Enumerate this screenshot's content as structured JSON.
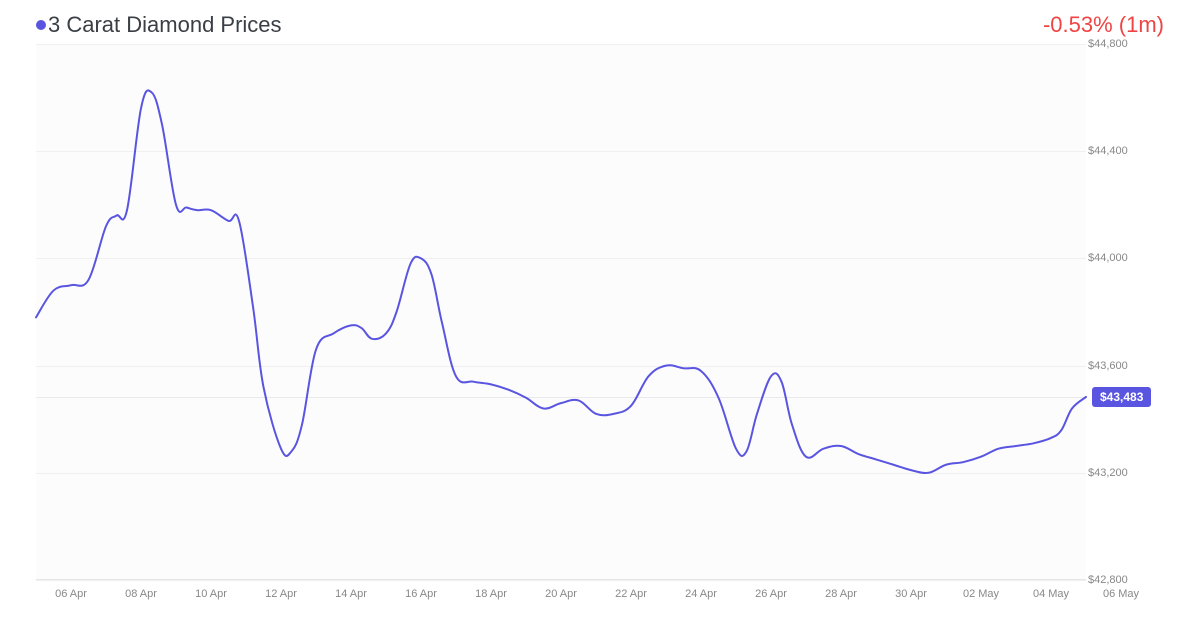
{
  "title": "3 Carat Diamond Prices",
  "change_text": "-0.53% (1m)",
  "change_color": "#ef4444",
  "line_color": "#5a55e0",
  "line_width": 2,
  "badge_bg": "#5a55e0",
  "badge_text": "$43,483",
  "badge_value": 43483,
  "plot": {
    "bg": "#fcfcfd",
    "grid_color": "#f0f0f0",
    "y_min": 42800,
    "y_max": 44800,
    "y_ticks": [
      42800,
      43200,
      43600,
      44000,
      44400,
      44800
    ],
    "y_tick_labels": [
      "$42,800",
      "$43,200",
      "$43,600",
      "$44,000",
      "$44,400",
      "$44,800"
    ],
    "x_min": 0,
    "x_max": 30,
    "x_ticks": [
      1,
      3,
      5,
      7,
      9,
      11,
      13,
      15,
      17,
      19,
      21,
      23,
      25,
      27,
      29,
      31
    ],
    "x_tick_labels": [
      "06 Apr",
      "08 Apr",
      "10 Apr",
      "12 Apr",
      "14 Apr",
      "16 Apr",
      "18 Apr",
      "20 Apr",
      "22 Apr",
      "24 Apr",
      "26 Apr",
      "28 Apr",
      "30 Apr",
      "02 May",
      "04 May",
      "06 May"
    ],
    "series": [
      {
        "x": 0.0,
        "y": 43780
      },
      {
        "x": 0.5,
        "y": 43880
      },
      {
        "x": 1.0,
        "y": 43900
      },
      {
        "x": 1.5,
        "y": 43920
      },
      {
        "x": 2.0,
        "y": 44120
      },
      {
        "x": 2.3,
        "y": 44160
      },
      {
        "x": 2.6,
        "y": 44180
      },
      {
        "x": 3.0,
        "y": 44560
      },
      {
        "x": 3.3,
        "y": 44620
      },
      {
        "x": 3.6,
        "y": 44500
      },
      {
        "x": 4.0,
        "y": 44200
      },
      {
        "x": 4.3,
        "y": 44190
      },
      {
        "x": 4.6,
        "y": 44180
      },
      {
        "x": 5.0,
        "y": 44180
      },
      {
        "x": 5.5,
        "y": 44140
      },
      {
        "x": 5.8,
        "y": 44140
      },
      {
        "x": 6.2,
        "y": 43820
      },
      {
        "x": 6.5,
        "y": 43520
      },
      {
        "x": 7.0,
        "y": 43290
      },
      {
        "x": 7.3,
        "y": 43280
      },
      {
        "x": 7.6,
        "y": 43380
      },
      {
        "x": 8.0,
        "y": 43660
      },
      {
        "x": 8.5,
        "y": 43720
      },
      {
        "x": 9.0,
        "y": 43750
      },
      {
        "x": 9.3,
        "y": 43740
      },
      {
        "x": 9.6,
        "y": 43700
      },
      {
        "x": 10.0,
        "y": 43720
      },
      {
        "x": 10.3,
        "y": 43800
      },
      {
        "x": 10.7,
        "y": 43980
      },
      {
        "x": 11.0,
        "y": 44000
      },
      {
        "x": 11.3,
        "y": 43940
      },
      {
        "x": 11.6,
        "y": 43760
      },
      {
        "x": 12.0,
        "y": 43560
      },
      {
        "x": 12.5,
        "y": 43540
      },
      {
        "x": 13.0,
        "y": 43530
      },
      {
        "x": 13.5,
        "y": 43510
      },
      {
        "x": 14.0,
        "y": 43480
      },
      {
        "x": 14.5,
        "y": 43440
      },
      {
        "x": 15.0,
        "y": 43460
      },
      {
        "x": 15.5,
        "y": 43470
      },
      {
        "x": 16.0,
        "y": 43420
      },
      {
        "x": 16.5,
        "y": 43420
      },
      {
        "x": 17.0,
        "y": 43450
      },
      {
        "x": 17.5,
        "y": 43560
      },
      {
        "x": 18.0,
        "y": 43600
      },
      {
        "x": 18.5,
        "y": 43590
      },
      {
        "x": 19.0,
        "y": 43580
      },
      {
        "x": 19.5,
        "y": 43480
      },
      {
        "x": 20.0,
        "y": 43290
      },
      {
        "x": 20.3,
        "y": 43280
      },
      {
        "x": 20.6,
        "y": 43420
      },
      {
        "x": 21.0,
        "y": 43560
      },
      {
        "x": 21.3,
        "y": 43540
      },
      {
        "x": 21.6,
        "y": 43380
      },
      {
        "x": 22.0,
        "y": 43260
      },
      {
        "x": 22.5,
        "y": 43290
      },
      {
        "x": 23.0,
        "y": 43300
      },
      {
        "x": 23.5,
        "y": 43270
      },
      {
        "x": 24.0,
        "y": 43250
      },
      {
        "x": 24.5,
        "y": 43230
      },
      {
        "x": 25.0,
        "y": 43210
      },
      {
        "x": 25.5,
        "y": 43200
      },
      {
        "x": 26.0,
        "y": 43230
      },
      {
        "x": 26.5,
        "y": 43240
      },
      {
        "x": 27.0,
        "y": 43260
      },
      {
        "x": 27.5,
        "y": 43290
      },
      {
        "x": 28.0,
        "y": 43300
      },
      {
        "x": 28.5,
        "y": 43310
      },
      {
        "x": 29.0,
        "y": 43330
      },
      {
        "x": 29.3,
        "y": 43360
      },
      {
        "x": 29.6,
        "y": 43440
      },
      {
        "x": 30.0,
        "y": 43483
      }
    ]
  }
}
